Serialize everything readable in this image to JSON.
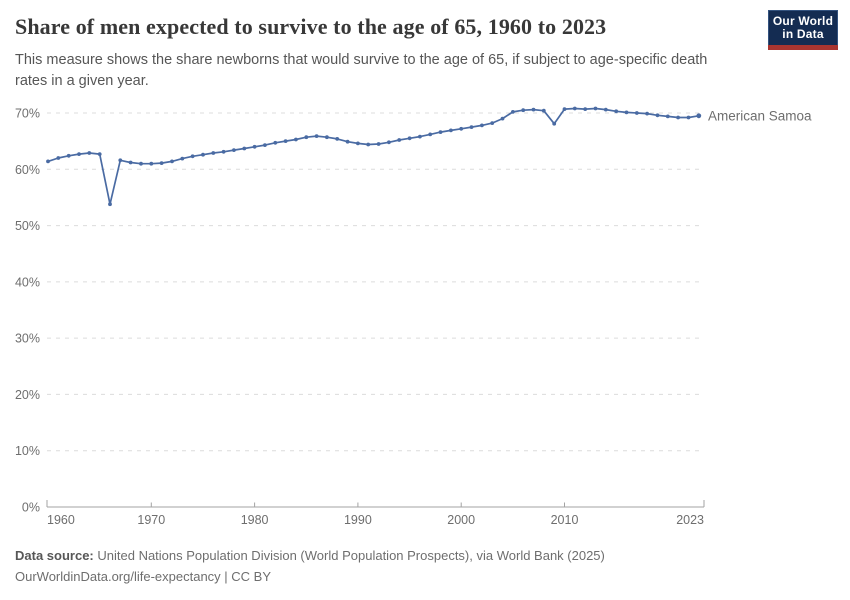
{
  "header": {
    "title": "Share of men expected to survive to the age of 65, 1960 to 2023",
    "subtitle": "This measure shows the share newborns that would survive to the age of 65, if subject to age-specific death rates in a given year.",
    "logo": {
      "line1": "Our World",
      "line2": "in Data"
    }
  },
  "footer": {
    "source_label": "Data source:",
    "source_text": "United Nations Population Division (World Population Prospects), via World Bank (2025)",
    "license_line": "OurWorldinData.org/life-expectancy | CC BY"
  },
  "colors": {
    "line": "#4a6ba3",
    "entity_label": "#4a6ba3",
    "gridline": "#dcdcdc",
    "axis": "#a3a3a3",
    "tick_text": "#6e6e6e",
    "logo_bg": "#142c52",
    "logo_red": "#a93530"
  },
  "chart_data": {
    "type": "line",
    "title": "Share of men expected to survive to the age of 65, 1960 to 2023",
    "entity": "American Samoa",
    "unit": "%",
    "ylabel": "",
    "xlabel": "",
    "ylim": [
      0,
      70
    ],
    "yticks": [
      0,
      10,
      20,
      30,
      40,
      50,
      60,
      70
    ],
    "xticks": [
      1960,
      1970,
      1980,
      1990,
      2000,
      2010,
      2023
    ],
    "grid": "horizontal-dashed",
    "legend_position": "end-of-line-label",
    "x": [
      1960,
      1961,
      1962,
      1963,
      1964,
      1965,
      1966,
      1967,
      1968,
      1969,
      1970,
      1971,
      1972,
      1973,
      1974,
      1975,
      1976,
      1977,
      1978,
      1979,
      1980,
      1981,
      1982,
      1983,
      1984,
      1985,
      1986,
      1987,
      1988,
      1989,
      1990,
      1991,
      1992,
      1993,
      1994,
      1995,
      1996,
      1997,
      1998,
      1999,
      2000,
      2001,
      2002,
      2003,
      2004,
      2005,
      2006,
      2007,
      2008,
      2009,
      2010,
      2011,
      2012,
      2013,
      2014,
      2015,
      2016,
      2017,
      2018,
      2019,
      2020,
      2021,
      2022,
      2023
    ],
    "series": [
      {
        "name": "American Samoa",
        "values": [
          61.4,
          62.0,
          62.4,
          62.7,
          62.9,
          62.7,
          53.8,
          61.6,
          61.2,
          61.0,
          61.0,
          61.1,
          61.4,
          61.9,
          62.3,
          62.6,
          62.9,
          63.1,
          63.4,
          63.7,
          64.0,
          64.3,
          64.7,
          65.0,
          65.3,
          65.7,
          65.9,
          65.7,
          65.4,
          64.9,
          64.6,
          64.4,
          64.5,
          64.8,
          65.2,
          65.5,
          65.8,
          66.2,
          66.6,
          66.9,
          67.2,
          67.5,
          67.8,
          68.2,
          69.0,
          70.2,
          70.5,
          70.6,
          70.4,
          68.1,
          70.7,
          70.8,
          70.7,
          70.8,
          70.6,
          70.3,
          70.1,
          70.0,
          69.9,
          69.6,
          69.4,
          69.2,
          69.2,
          69.5
        ]
      }
    ]
  }
}
